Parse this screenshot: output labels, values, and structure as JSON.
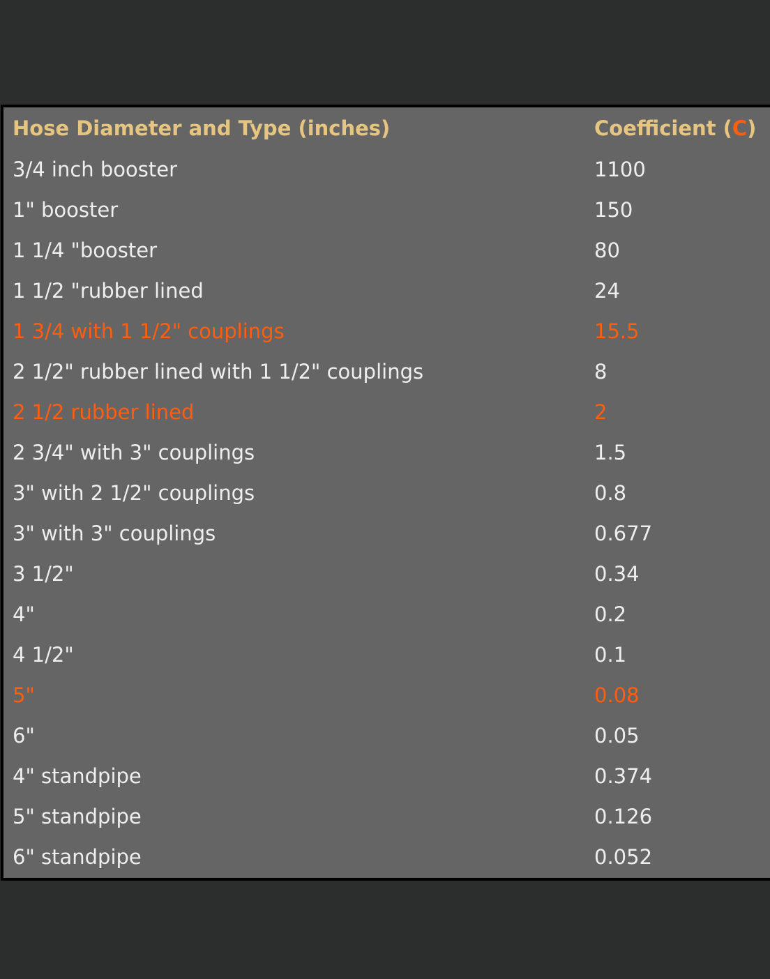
{
  "table": {
    "header": {
      "col1": "Hose Diameter and Type (inches)",
      "col2_prefix": "Coefficient (",
      "col2_accent": "C",
      "col2_suffix": ")"
    },
    "rows": [
      {
        "type": "3/4 inch booster",
        "coefficient": "1100",
        "highlight": false
      },
      {
        "type": "1\" booster",
        "coefficient": "150",
        "highlight": false
      },
      {
        "type": "1 1/4 \"booster",
        "coefficient": "80",
        "highlight": false
      },
      {
        "type": "1 1/2 \"rubber lined",
        "coefficient": "24",
        "highlight": false
      },
      {
        "type": "1 3/4 with 1 1/2\" couplings",
        "coefficient": "15.5",
        "highlight": true
      },
      {
        "type": "2 1/2\" rubber lined with 1 1/2\" couplings",
        "coefficient": "8",
        "highlight": false
      },
      {
        "type": "2 1/2 rubber lined",
        "coefficient": "2",
        "highlight": true
      },
      {
        "type": "2 3/4\" with 3\" couplings",
        "coefficient": "1.5",
        "highlight": false
      },
      {
        "type": "3\" with 2 1/2\" couplings",
        "coefficient": "0.8",
        "highlight": false
      },
      {
        "type": "3\" with 3\" couplings",
        "coefficient": "0.677",
        "highlight": false
      },
      {
        "type": "3 1/2\"",
        "coefficient": "0.34",
        "highlight": false
      },
      {
        "type": "4\"",
        "coefficient": "0.2",
        "highlight": false
      },
      {
        "type": "4 1/2\"",
        "coefficient": "0.1",
        "highlight": false
      },
      {
        "type": "5\"",
        "coefficient": "0.08",
        "highlight": true
      },
      {
        "type": "6\"",
        "coefficient": "0.05",
        "highlight": false
      },
      {
        "type": "4\" standpipe",
        "coefficient": "0.374",
        "highlight": false
      },
      {
        "type": "5\" standpipe",
        "coefficient": "0.126",
        "highlight": false
      },
      {
        "type": "6\" standpipe",
        "coefficient": "0.052",
        "highlight": false
      }
    ]
  },
  "colors": {
    "background": "#2c2d2d",
    "table_background": "#656565",
    "header_text": "#e5c580",
    "body_text": "#eeeeee",
    "highlight": "#ff5e0e"
  }
}
